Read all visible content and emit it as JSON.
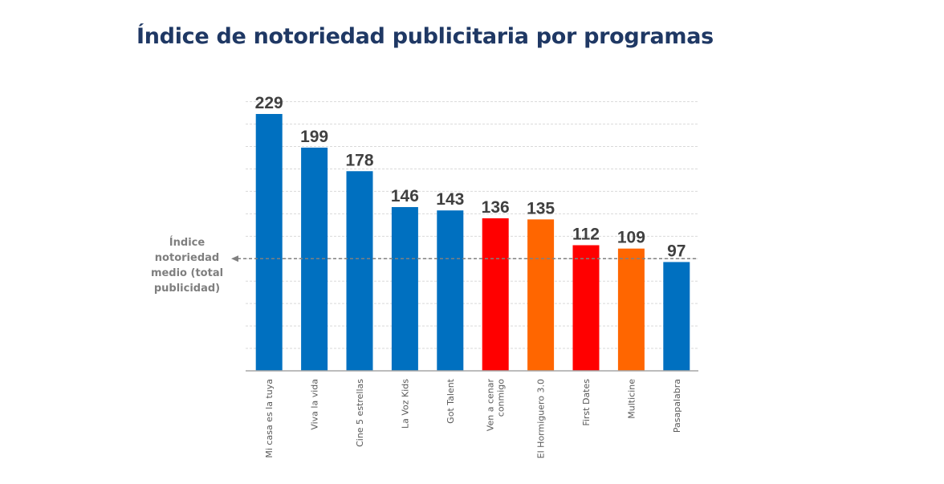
{
  "chart_data": {
    "type": "bar",
    "title": "Índice de notoriedad publicitaria por programas",
    "categories": [
      [
        "Mi casa es la tuya"
      ],
      [
        "Viva la vida"
      ],
      [
        "Cine 5 estrellas"
      ],
      [
        "La Voz Kids"
      ],
      [
        "Got Talent"
      ],
      [
        "Ven a cenar",
        "conmigo"
      ],
      [
        "El Hormiguero 3.0"
      ],
      [
        "First Dates"
      ],
      [
        "Multicine"
      ],
      [
        "Pasapalabra"
      ]
    ],
    "values": [
      229,
      199,
      178,
      146,
      143,
      136,
      135,
      112,
      109,
      97
    ],
    "bar_colors": [
      "#0070c0",
      "#0070c0",
      "#0070c0",
      "#0070c0",
      "#0070c0",
      "#ff0000",
      "#ff6600",
      "#ff0000",
      "#ff6600",
      "#0070c0"
    ],
    "reference_line": {
      "value": 100,
      "label_lines": [
        "Índice",
        "notoriedad",
        "medio (total",
        "publicidad)"
      ],
      "color": "#808080"
    },
    "ylim": [
      0,
      240
    ],
    "grid": true,
    "xlabel": "",
    "ylabel": ""
  }
}
